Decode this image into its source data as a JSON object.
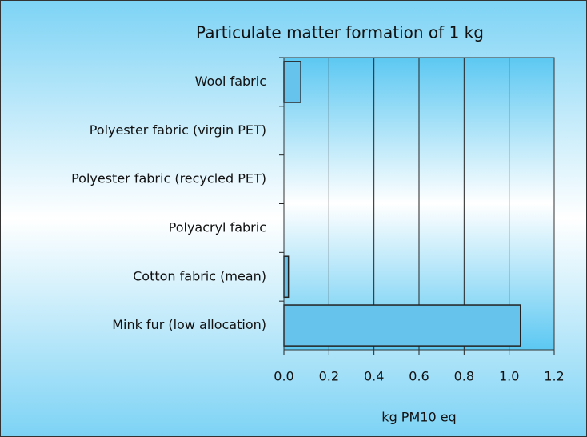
{
  "chart_data": {
    "type": "barh",
    "title": "Particulate matter formation of 1 kg",
    "xlabel": "kg PM10 eq",
    "categories": [
      "Wool fabric",
      "Polyester fabric (virgin PET)",
      "Polyester fabric (recycled PET)",
      "Polyacryl fabric",
      "Cotton fabric (mean)",
      "Mink fur (low allocation)"
    ],
    "values": [
      0.075,
      0,
      0,
      0,
      0.02,
      1.05
    ],
    "color": "#66c4ec",
    "xlim": [
      0,
      1.2
    ],
    "xticks": [
      {
        "value": 0,
        "label": "0.0"
      },
      0.2,
      0.4,
      0.6,
      0.8,
      {
        "value": 1,
        "label": "1.0"
      },
      1.2
    ],
    "grid": true
  }
}
